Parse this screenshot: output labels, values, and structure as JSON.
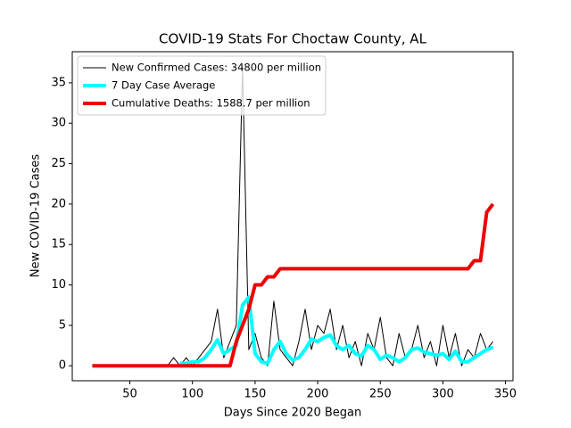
{
  "chart_data": {
    "type": "line",
    "title": "COVID-19 Stats For Choctaw County, AL",
    "x_label": "Days Since 2020 Began",
    "y_label": "New COVID-19 Cases",
    "x": [
      20,
      25,
      30,
      35,
      40,
      45,
      50,
      55,
      60,
      65,
      70,
      75,
      80,
      85,
      90,
      95,
      100,
      105,
      110,
      115,
      120,
      125,
      130,
      135,
      140,
      145,
      150,
      155,
      160,
      165,
      170,
      175,
      180,
      185,
      190,
      195,
      200,
      205,
      210,
      215,
      220,
      225,
      230,
      235,
      240,
      245,
      250,
      255,
      260,
      265,
      270,
      275,
      280,
      285,
      290,
      295,
      300,
      305,
      310,
      315,
      320,
      325,
      330,
      335,
      340
    ],
    "series": [
      {
        "name": "New Confirmed Cases: 34800 per million",
        "color": "#000000",
        "width": 1,
        "values": [
          0,
          0,
          0,
          0,
          0,
          0,
          0,
          0,
          0,
          0,
          0,
          0,
          0,
          1,
          0,
          1,
          0,
          1,
          2,
          3,
          7,
          1,
          3,
          5,
          37,
          2,
          4,
          1,
          0,
          8,
          2,
          1,
          0,
          3,
          7,
          2,
          5,
          4,
          7,
          2,
          5,
          1,
          3,
          0,
          4,
          2,
          6,
          1,
          0,
          4,
          1,
          2,
          5,
          1,
          3,
          0,
          5,
          1,
          4,
          0,
          2,
          1,
          4,
          2,
          3
        ]
      },
      {
        "name": "7 Day Case Average",
        "color": "#00ffff",
        "width": 4,
        "values": [
          null,
          null,
          null,
          null,
          null,
          null,
          null,
          null,
          null,
          null,
          null,
          null,
          null,
          null,
          0.3,
          0.3,
          0.5,
          0.5,
          1,
          2,
          3.2,
          1.5,
          2,
          2.5,
          7.5,
          8.5,
          1.5,
          0.5,
          0.3,
          2,
          3,
          1.5,
          0.7,
          1,
          2,
          3.3,
          3,
          3.5,
          3.8,
          2.5,
          2,
          2.5,
          1.5,
          1.2,
          2.5,
          2,
          0.8,
          1.3,
          1,
          0.5,
          1,
          2,
          2.2,
          1.7,
          1.5,
          1.3,
          1.5,
          0.8,
          1.8,
          0.5,
          0.5,
          1,
          1.5,
          2,
          2.3
        ]
      },
      {
        "name": "Cumulative Deaths: 1588.7 per million",
        "color": "#ee0000",
        "width": 4,
        "values": [
          0,
          0,
          0,
          0,
          0,
          0,
          0,
          0,
          0,
          0,
          0,
          0,
          0,
          0,
          0,
          0,
          0,
          0,
          0,
          0,
          0,
          0,
          0,
          3,
          5,
          7,
          10,
          10,
          11,
          11,
          12,
          12,
          12,
          12,
          12,
          12,
          12,
          12,
          12,
          12,
          12,
          12,
          12,
          12,
          12,
          12,
          12,
          12,
          12,
          12,
          12,
          12,
          12,
          12,
          12,
          12,
          12,
          12,
          12,
          12,
          12,
          13,
          13,
          19,
          20
        ]
      }
    ],
    "xlim": [
      4,
      356
    ],
    "ylim": [
      -1.85,
      38.85
    ],
    "xticks": [
      50,
      100,
      150,
      200,
      250,
      300,
      350
    ],
    "yticks": [
      0,
      5,
      10,
      15,
      20,
      25,
      30,
      35
    ],
    "legend": "upper left"
  }
}
